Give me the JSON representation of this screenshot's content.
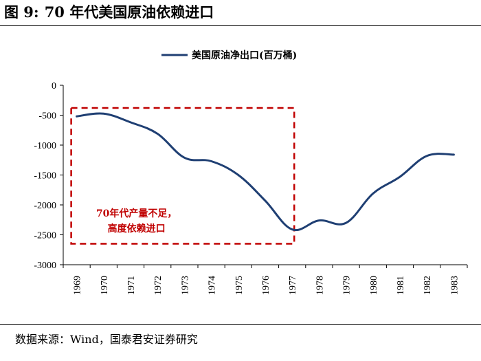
{
  "header": {
    "figure_label": "图 9:",
    "figure_number_text": "70 年代美国原油依赖进口"
  },
  "source": {
    "text": "数据来源：Wind，国泰君安证券研究"
  },
  "chart_data": {
    "type": "line",
    "title": "70 年代美国原油依赖进口",
    "xlabel": "",
    "ylabel": "",
    "categories": [
      "1969",
      "1970",
      "1971",
      "1972",
      "1973",
      "1974",
      "1975",
      "1976",
      "1977",
      "1978",
      "1979",
      "1980",
      "1981",
      "1982",
      "1983"
    ],
    "series": [
      {
        "name": "美国原油净出口(百万桶)",
        "color": "#1f3f73",
        "values": [
          -520,
          -475,
          -620,
          -810,
          -1210,
          -1270,
          -1500,
          -1930,
          -2410,
          -2260,
          -2300,
          -1810,
          -1530,
          -1180,
          -1160
        ]
      }
    ],
    "ylim": [
      -3000,
      0
    ],
    "yticks": [
      0,
      -500,
      -1000,
      -1500,
      -2000,
      -2500,
      -3000
    ],
    "ytick_labels": [
      "0",
      "-500",
      "-1000",
      "-1500",
      "-2000",
      "-2500",
      "-3000"
    ],
    "grid": false,
    "legend_position": "top-center",
    "annotation": {
      "lines": [
        "70年代产量不足，",
        "高度依赖进口"
      ],
      "color": "#c00000",
      "box_style": "dashed",
      "x_range": [
        "1969",
        "1977"
      ],
      "y_range": [
        -380,
        -2650
      ]
    }
  }
}
